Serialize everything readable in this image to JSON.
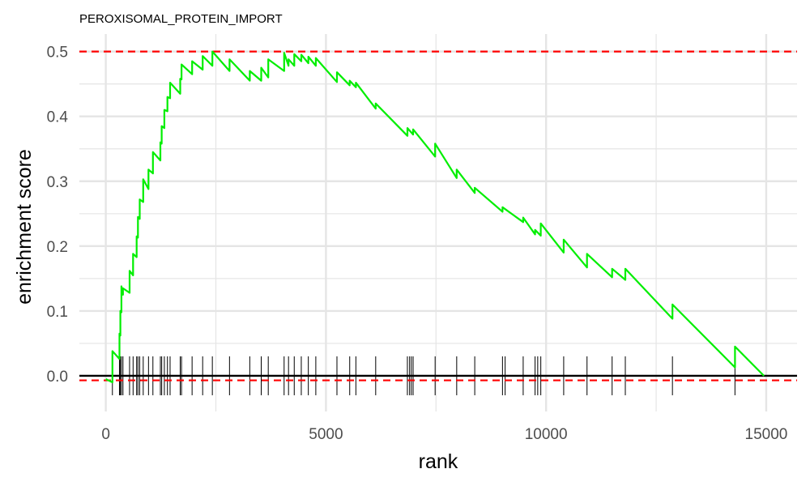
{
  "chart_data": {
    "type": "line",
    "title": "PEROXISOMAL_PROTEIN_IMPORT",
    "xlabel": "rank",
    "ylabel": "enrichment score",
    "xlim": [
      -600,
      15700
    ],
    "ylim": [
      -0.055,
      0.527
    ],
    "x_ticks": [
      0,
      5000,
      10000,
      15000
    ],
    "x_tick_labels": [
      "0",
      "5000",
      "10000",
      "15000"
    ],
    "y_ticks": [
      0.0,
      0.1,
      0.2,
      0.3,
      0.4,
      0.5
    ],
    "y_tick_labels": [
      "0.0",
      "0.1",
      "0.2",
      "0.3",
      "0.4",
      "0.5"
    ],
    "grid": true,
    "colors": {
      "curve": "#00ee00",
      "threshold": "#ff0000",
      "baseline": "#000000",
      "hits": "#000000",
      "grid": "#e5e5e5"
    },
    "series": [
      {
        "x": [
          0,
          150,
          150,
          310,
          310,
          330,
          330,
          355,
          355,
          390,
          390,
          540,
          540,
          620,
          620,
          700,
          700,
          730,
          730,
          770,
          770,
          850,
          850,
          970,
          970,
          1070,
          1070,
          1240,
          1240,
          1270,
          1270,
          1330,
          1330,
          1400,
          1400,
          1460,
          1460,
          1690,
          1690,
          1720,
          1720,
          1960,
          1960,
          2200,
          2200,
          2420,
          2420,
          2810,
          2810,
          3270,
          3270,
          3530,
          3530,
          3690,
          3690,
          4050,
          4050,
          4150,
          4150,
          4280,
          4280,
          4440,
          4440,
          4600,
          4600,
          4770,
          4770,
          5250,
          5250,
          5540,
          5540,
          5680,
          5680,
          6130,
          6130,
          6850,
          6850,
          6980,
          6980,
          7480,
          7480,
          7970,
          7970,
          8380,
          8380,
          9010,
          9010,
          9480,
          9480,
          9750,
          9750,
          9880,
          9880,
          10400,
          10400,
          10930,
          10930,
          11500,
          11500,
          11800,
          11800,
          12870,
          12870,
          14290,
          14290,
          14950
        ],
        "y": [
          -0.005,
          -0.01,
          0.038,
          0.026,
          0.065,
          0.062,
          0.1,
          0.098,
          0.138,
          0.125,
          0.135,
          0.128,
          0.162,
          0.155,
          0.188,
          0.183,
          0.215,
          0.213,
          0.245,
          0.242,
          0.272,
          0.268,
          0.303,
          0.288,
          0.318,
          0.312,
          0.345,
          0.332,
          0.36,
          0.358,
          0.385,
          0.382,
          0.41,
          0.408,
          0.43,
          0.428,
          0.452,
          0.435,
          0.458,
          0.457,
          0.48,
          0.465,
          0.485,
          0.472,
          0.493,
          0.478,
          0.5,
          0.47,
          0.488,
          0.455,
          0.47,
          0.455,
          0.475,
          0.46,
          0.488,
          0.47,
          0.498,
          0.478,
          0.488,
          0.478,
          0.496,
          0.485,
          0.495,
          0.482,
          0.492,
          0.478,
          0.49,
          0.453,
          0.468,
          0.448,
          0.455,
          0.445,
          0.452,
          0.412,
          0.42,
          0.37,
          0.382,
          0.372,
          0.38,
          0.338,
          0.358,
          0.305,
          0.318,
          0.282,
          0.29,
          0.253,
          0.26,
          0.237,
          0.244,
          0.218,
          0.225,
          0.216,
          0.235,
          0.19,
          0.21,
          0.167,
          0.188,
          0.152,
          0.165,
          0.148,
          0.165,
          0.088,
          0.11,
          0.013,
          0.045,
          0.0
        ]
      }
    ],
    "hlines": [
      0.5,
      -0.007
    ],
    "baseline": 0.0,
    "hit_ranks": [
      150,
      310,
      330,
      355,
      390,
      540,
      620,
      700,
      730,
      770,
      850,
      970,
      1070,
      1240,
      1270,
      1330,
      1400,
      1460,
      1690,
      1720,
      1960,
      2200,
      2420,
      2810,
      3270,
      3530,
      3690,
      4050,
      4150,
      4280,
      4440,
      4600,
      4770,
      5250,
      5540,
      5680,
      6130,
      6850,
      6900,
      6940,
      6980,
      7480,
      7970,
      8380,
      9010,
      9070,
      9480,
      9750,
      9810,
      9880,
      10400,
      10930,
      11500,
      11800,
      12870,
      14290
    ]
  }
}
